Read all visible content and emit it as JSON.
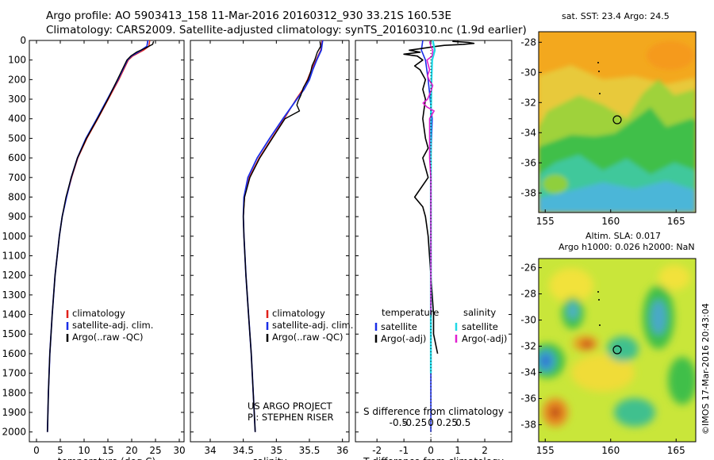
{
  "header": {
    "line1": "Argo profile: AO 5903413_158 11-Mar-2016 20160312_930 33.21S 160.53E",
    "line2": "Climatology: CARS2009. Satellite-adjusted climatology: synTS_20160310.nc (1.9d earlier)"
  },
  "stamp": "©IMOS 17-Mar-2016 20:43:04",
  "colors": {
    "clim": "#e0201a",
    "sat": "#1a2ee6",
    "argo": "#000000",
    "sat_s": "#22d8e6",
    "argo_s": "#e020d0"
  },
  "chart_data": [
    {
      "type": "line",
      "id": "temperature",
      "xlabel": "temperature (deg C)",
      "ylim": [
        2050,
        0
      ],
      "xlim": [
        -1.5,
        31
      ],
      "xticks": [
        0,
        5,
        10,
        15,
        20,
        25,
        30
      ],
      "yticks": [
        0,
        100,
        200,
        300,
        400,
        500,
        600,
        700,
        800,
        900,
        1000,
        1100,
        1200,
        1300,
        1400,
        1500,
        1600,
        1700,
        1800,
        1900,
        2000
      ],
      "legend": [
        "climatology",
        "satellite-adj. clim.",
        "Argo(..raw -QC)"
      ],
      "series": [
        {
          "name": "climatology",
          "pressure": [
            0,
            30,
            50,
            80,
            100,
            150,
            200,
            250,
            300,
            400,
            500,
            600,
            700,
            800,
            900,
            1000,
            1200,
            1400,
            1600,
            1800,
            2000
          ],
          "values": [
            23.8,
            23.6,
            22.5,
            20.2,
            19.3,
            18.3,
            17.3,
            16.2,
            15.1,
            12.9,
            10.6,
            8.7,
            7.4,
            6.3,
            5.4,
            4.8,
            3.9,
            3.3,
            2.8,
            2.5,
            2.3
          ]
        },
        {
          "name": "satellite-adj. clim.",
          "pressure": [
            0,
            30,
            50,
            80,
            100,
            150,
            200,
            250,
            300,
            400,
            500,
            600,
            700,
            800,
            900,
            1000,
            1200,
            1400,
            1600,
            1800,
            2000
          ],
          "values": [
            23.4,
            23.2,
            22.0,
            19.9,
            19.1,
            18.1,
            17.1,
            16.0,
            14.9,
            12.7,
            10.4,
            8.6,
            7.3,
            6.3,
            5.4,
            4.8,
            3.9,
            3.3,
            2.8,
            2.5,
            2.3
          ]
        },
        {
          "name": "Argo(..raw -QC)",
          "pressure": [
            5,
            20,
            40,
            60,
            80,
            100,
            150,
            200,
            250,
            300,
            400,
            500,
            600,
            700,
            800,
            900,
            1000,
            1200,
            1400,
            1600,
            1800,
            2000
          ],
          "values": [
            24.6,
            24.4,
            22.8,
            21.0,
            19.8,
            19.0,
            18.0,
            17.0,
            16.0,
            15.0,
            12.8,
            10.5,
            8.6,
            7.3,
            6.2,
            5.4,
            4.8,
            3.9,
            3.3,
            2.8,
            2.5,
            2.3
          ]
        }
      ]
    },
    {
      "type": "line",
      "id": "salinity",
      "xlabel": "salinity",
      "ylim": [
        2050,
        0
      ],
      "xlim": [
        33.7,
        36.1
      ],
      "xticks": [
        34,
        34.5,
        35,
        35.5,
        36
      ],
      "legend": [
        "climatology",
        "satellite-adj. clim.",
        "Argo(..raw -QC)"
      ],
      "annotation": [
        "US ARGO PROJECT",
        "PI: STEPHEN RISER"
      ],
      "series": [
        {
          "name": "climatology",
          "pressure": [
            0,
            50,
            100,
            150,
            200,
            250,
            300,
            400,
            500,
            600,
            700,
            800,
            900,
            1000,
            1200,
            1400,
            1600,
            1800,
            2000
          ],
          "values": [
            35.69,
            35.67,
            35.6,
            35.53,
            35.47,
            35.4,
            35.3,
            35.12,
            34.93,
            34.74,
            34.59,
            34.52,
            34.5,
            34.51,
            34.54,
            34.58,
            34.62,
            34.65,
            34.68
          ]
        },
        {
          "name": "satellite-adj. clim.",
          "pressure": [
            0,
            50,
            100,
            150,
            200,
            250,
            300,
            400,
            500,
            600,
            700,
            800,
            900,
            1000,
            1200,
            1400,
            1600,
            1800,
            2000
          ],
          "values": [
            35.7,
            35.68,
            35.61,
            35.55,
            35.5,
            35.42,
            35.31,
            35.1,
            34.9,
            34.71,
            34.57,
            34.51,
            34.5,
            34.51,
            34.54,
            34.58,
            34.62,
            34.65,
            34.68
          ]
        },
        {
          "name": "Argo(..raw -QC)",
          "pressure": [
            5,
            30,
            60,
            100,
            130,
            160,
            200,
            240,
            280,
            310,
            330,
            360,
            400,
            500,
            600,
            700,
            800,
            900,
            1000,
            1200,
            1400,
            1600,
            1800,
            2000
          ],
          "values": [
            35.66,
            35.67,
            35.62,
            35.58,
            35.54,
            35.52,
            35.48,
            35.41,
            35.37,
            35.33,
            35.31,
            35.35,
            35.13,
            34.94,
            34.75,
            34.6,
            34.52,
            34.5,
            34.51,
            34.54,
            34.58,
            34.62,
            34.65,
            34.68
          ]
        }
      ]
    },
    {
      "type": "line",
      "id": "difference",
      "xlabel": "T difference from climatology",
      "xlabel_top": "S difference from climatology",
      "ylim": [
        2050,
        0
      ],
      "xlim": [
        -2.8,
        3.0
      ],
      "xticks": [
        -2,
        -1,
        0,
        1,
        2
      ],
      "s_ticks": [
        "-0.5",
        "-0.25",
        "0",
        "0.25",
        "0.5"
      ],
      "legend_t": {
        "title": "temperature",
        "items": [
          "satellite",
          "Argo(-adj)"
        ]
      },
      "legend_s": {
        "title": "salinity",
        "items": [
          "satellite",
          "Argo(-adj)"
        ]
      },
      "series": [
        {
          "name": "T satellite",
          "pressure": [
            0,
            50,
            100,
            200,
            400,
            600,
            800,
            1000,
            1200,
            1500,
            1800,
            2000
          ],
          "values": [
            -0.3,
            -0.35,
            -0.2,
            -0.1,
            0.05,
            0.0,
            0.0,
            0.0,
            0.0,
            0.0,
            0.0,
            0.0
          ]
        },
        {
          "name": "T Argo(-adj)",
          "pressure": [
            5,
            10,
            15,
            20,
            25,
            30,
            40,
            50,
            60,
            70,
            80,
            100,
            130,
            150,
            200,
            250,
            300,
            400,
            500,
            550,
            600,
            700,
            800,
            850,
            900,
            1000,
            1200,
            1400,
            1500,
            1600
          ],
          "values": [
            0.8,
            1.4,
            1.6,
            1.2,
            0.5,
            0.2,
            -0.3,
            -0.8,
            -0.4,
            -1.0,
            -0.5,
            -0.3,
            -0.6,
            -0.4,
            -0.2,
            -0.3,
            -0.2,
            -0.3,
            -0.2,
            -0.1,
            -0.3,
            -0.1,
            -0.6,
            -0.3,
            -0.2,
            -0.1,
            0.0,
            0.1,
            0.1,
            0.25
          ]
        },
        {
          "name": "S satellite",
          "pressure": [
            0,
            50,
            100,
            200,
            400,
            600,
            800,
            1000,
            1200,
            1400,
            1600,
            1700
          ],
          "values": [
            0.03,
            0.06,
            0.02,
            0.01,
            0.0,
            0.0,
            0.0,
            0.0,
            0.0,
            0.0,
            0.0,
            0.0
          ]
        },
        {
          "name": "S Argo(-adj)",
          "pressure": [
            5,
            30,
            50,
            80,
            100,
            150,
            180,
            200,
            230,
            260,
            300,
            320,
            340,
            360,
            400,
            500,
            600,
            700,
            800,
            900,
            1000,
            1200,
            1400
          ],
          "values": [
            -0.02,
            0.0,
            0.03,
            0.02,
            -0.06,
            -0.02,
            -0.05,
            -0.03,
            0.03,
            0.0,
            -0.05,
            -0.12,
            -0.06,
            0.05,
            -0.02,
            -0.02,
            -0.02,
            0.0,
            0.0,
            0.0,
            0.0,
            0.0,
            0.0
          ]
        }
      ]
    },
    {
      "type": "heatmap",
      "id": "sst_map",
      "title": "sat. SST: 23.4  Argo: 24.5",
      "xlim": [
        154.5,
        166.5
      ],
      "ylim": [
        -39.3,
        -27.3
      ],
      "xticks": [
        155,
        160,
        165
      ],
      "yticks": [
        -28,
        -30,
        -32,
        -34,
        -36,
        -38
      ],
      "float_position": {
        "lon": 160.53,
        "lat": -33.21
      }
    },
    {
      "type": "heatmap",
      "id": "sla_map",
      "title_line1": "Altim. SLA: 0.017",
      "title_line2": "Argo h1000: 0.026 h2000: NaN",
      "xlim": [
        154.5,
        166.5
      ],
      "ylim": [
        -39.3,
        -25.3
      ],
      "xticks": [
        155,
        160,
        165
      ],
      "yticks": [
        -26,
        -28,
        -30,
        -32,
        -34,
        -36,
        -38
      ],
      "float_position": {
        "lon": 160.53,
        "lat": -33.21
      }
    }
  ]
}
